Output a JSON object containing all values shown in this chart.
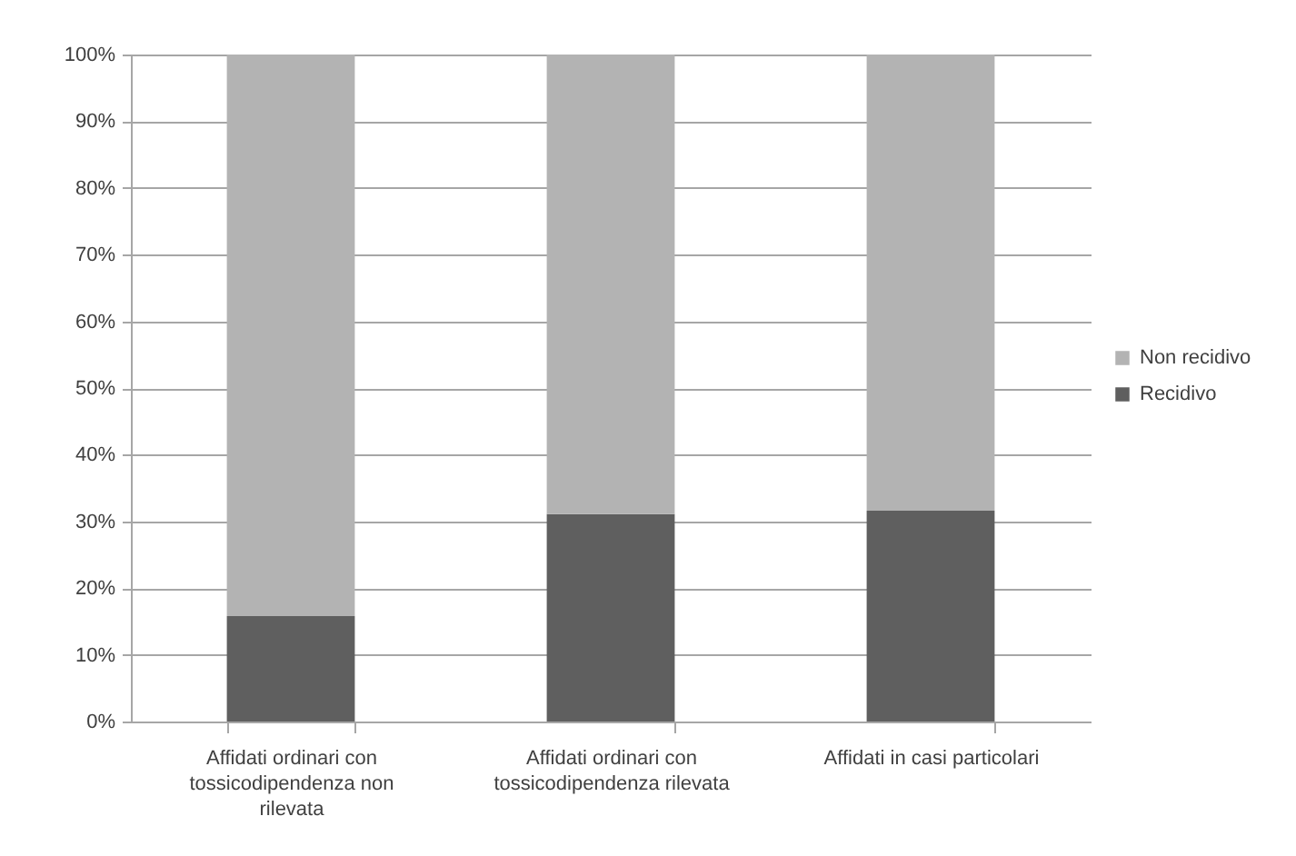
{
  "chart_data": {
    "type": "bar",
    "stacked": true,
    "categories": [
      "Affidati ordinari con tossicodipendenza non rilevata",
      "Affidati ordinari con tossicodipendenza rilevata",
      "Affidati in casi particolari"
    ],
    "series": [
      {
        "name": "Recidivo",
        "color": "#5f5f5f",
        "values": [
          15.8,
          31.1,
          31.6
        ]
      },
      {
        "name": "Non recidivo",
        "color": "#b3b3b3",
        "values": [
          84.2,
          68.9,
          68.4
        ]
      }
    ],
    "ylim": [
      0,
      100
    ],
    "yticks": [
      {
        "value": 0,
        "label": "0%"
      },
      {
        "value": 10,
        "label": "10%"
      },
      {
        "value": 20,
        "label": "20%"
      },
      {
        "value": 30,
        "label": "30%"
      },
      {
        "value": 40,
        "label": "40%"
      },
      {
        "value": 50,
        "label": "50%"
      },
      {
        "value": 60,
        "label": "60%"
      },
      {
        "value": 70,
        "label": "70%"
      },
      {
        "value": 80,
        "label": "80%"
      },
      {
        "value": 90,
        "label": "90%"
      },
      {
        "value": 100,
        "label": "100%"
      }
    ],
    "grid": "y",
    "legend": "right"
  }
}
